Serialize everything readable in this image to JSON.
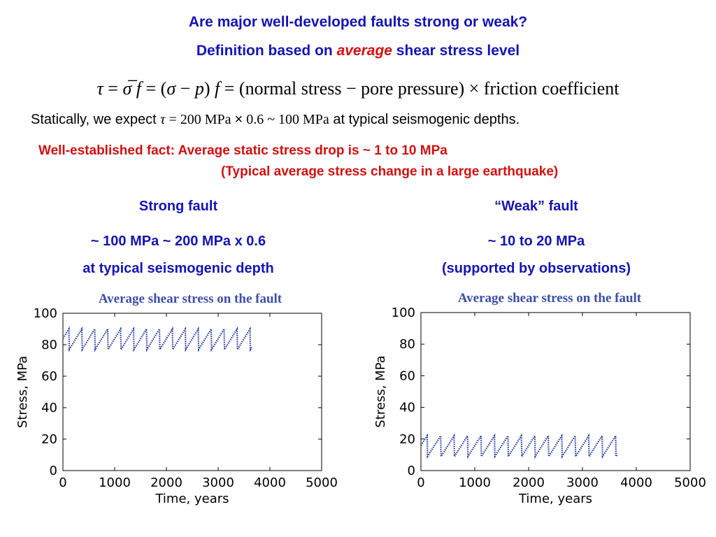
{
  "header": {
    "title": "Are major well-developed faults strong or weak?",
    "subtitle_pre": "Definition based on ",
    "subtitle_em": "average",
    "subtitle_post": " shear stress level"
  },
  "equation": {
    "tau": "τ",
    "eq1": " = ",
    "sigma_bar": "σ̅",
    "f1": " f",
    "eq2": " = (",
    "sigma": "σ",
    "minus": " − ",
    "p": "p",
    "close": ") ",
    "f2": "f",
    "eq3": " = (normal stress  −  pore pressure) × friction coefficient"
  },
  "static": {
    "pre": "Statically, we expect ",
    "tau": "τ",
    "formula": " = 200 MPa ",
    "times": "×",
    "formula2": " 0.6 ~ 100 MPa",
    "post": " at  typical seismogenic depths."
  },
  "fact": {
    "line1": "Well-established fact:  Average static stress drop is ~ 1 to 10 MPa",
    "line2": "(Typical average stress change in a large earthquake)"
  },
  "strong": {
    "heading": "Strong fault",
    "value": "~ 100 MPa ~ 200 MPa x 0.6",
    "depth": "at typical seismogenic depth"
  },
  "weak": {
    "heading": "“Weak” fault",
    "value": "~ 10 to 20 MPa",
    "note": "(supported by observations)"
  },
  "chart_data": [
    {
      "type": "line",
      "title": "Average shear stress on the fault",
      "xlabel": "Time, years",
      "ylabel": "Stress, MPa",
      "xlim": [
        0,
        5000
      ],
      "ylim": [
        0,
        100
      ],
      "xticks": [
        "0",
        "1000",
        "2000",
        "3000",
        "4000",
        "5000"
      ],
      "yticks": [
        "0",
        "20",
        "40",
        "60",
        "80",
        "100"
      ],
      "series_color": "#2b3fa0",
      "pattern": "sawtooth",
      "cycle_years": 250,
      "start_year": 0,
      "end_year": 3650,
      "start_value": 84,
      "peak_value": 90,
      "trough_value": 77,
      "final_value": 83,
      "grid": false
    },
    {
      "type": "line",
      "title": "Average shear stress on the fault",
      "xlabel": "Time, years",
      "ylabel": "Stress, MPa",
      "xlim": [
        0,
        5000
      ],
      "ylim": [
        0,
        100
      ],
      "xticks": [
        "0",
        "1000",
        "2000",
        "3000",
        "4000",
        "5000"
      ],
      "yticks": [
        "0",
        "20",
        "40",
        "60",
        "80",
        "100"
      ],
      "series_color": "#2b3fa0",
      "pattern": "sawtooth",
      "cycle_years": 250,
      "start_year": 0,
      "end_year": 3650,
      "start_value": 16,
      "peak_value": 22,
      "trough_value": 9,
      "final_value": 15,
      "grid": false
    }
  ]
}
